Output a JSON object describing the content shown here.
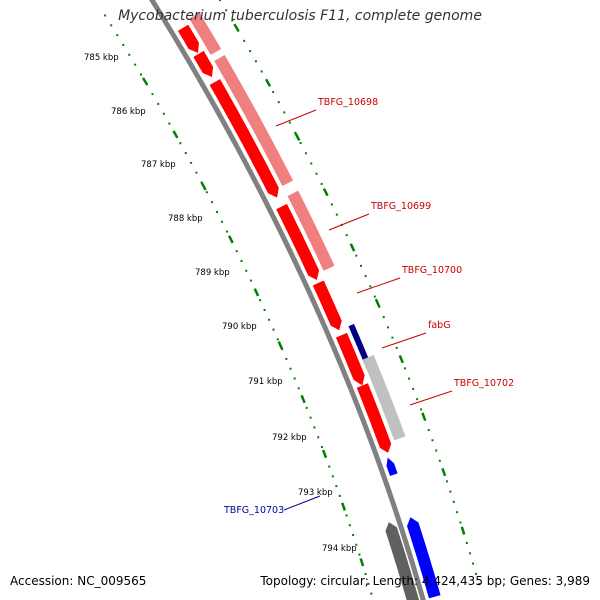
{
  "title": "Mycobacterium tuberculosis F11, complete genome",
  "accession": "Accession: NC_009565",
  "summary": "Topology: circular; Length: 4,424,435 bp; Genes: 3,989",
  "colors": {
    "forward_cds": "#ff0000",
    "forward_gene": "#f08080",
    "reverse_cds": "#0000ff",
    "reverse_gene_dark": "#000080",
    "reverse_gene_grey": "#c0c0c0",
    "backbone": "#808080",
    "ticks": "#008000",
    "forward_label": "#cc0000",
    "reverse_label": "#000099"
  },
  "ticks": [
    "785 kbp",
    "786 kbp",
    "787 kbp",
    "788 kbp",
    "789 kbp",
    "790 kbp",
    "791 kbp",
    "792 kbp",
    "793 kbp",
    "794 kbp"
  ],
  "gene_labels": [
    {
      "text": "TBFG_10698",
      "strand": "forward"
    },
    {
      "text": "TBFG_10699",
      "strand": "forward"
    },
    {
      "text": "TBFG_10700",
      "strand": "forward"
    },
    {
      "text": "fabG",
      "strand": "forward"
    },
    {
      "text": "TBFG_10702",
      "strand": "forward"
    },
    {
      "text": "TBFG_10703",
      "strand": "reverse"
    }
  ]
}
